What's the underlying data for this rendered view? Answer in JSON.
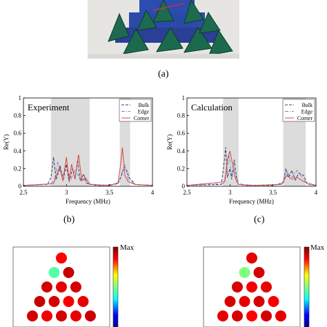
{
  "captions": {
    "a": "(a)",
    "b": "(b)",
    "c": "(c)"
  },
  "charts": {
    "experiment": {
      "title": "Experiment",
      "ylabel": "Re(Y)",
      "xlabel": "Frequency (MHz)",
      "xticks": [
        "2.5",
        "3",
        "3.5",
        "4"
      ],
      "yticks": [
        "0",
        "0.2",
        "0.4",
        "0.6",
        "0.8",
        "1"
      ],
      "legend": [
        "Bulk",
        "Edge",
        "Corner"
      ]
    },
    "calculation": {
      "title": "Calculation",
      "ylabel": "Re(Y)",
      "xlabel": "Frequency (MHz)",
      "xticks": [
        "2.5",
        "3",
        "3.5",
        "4"
      ],
      "yticks": [
        "0",
        "0.2",
        "0.4",
        "0.6",
        "0.8",
        "1"
      ],
      "legend": [
        "Bulk",
        "Edge",
        "Corner"
      ]
    }
  },
  "colorbar": {
    "max_label": "Max"
  },
  "chart_data": [
    {
      "type": "line",
      "title": "Experiment",
      "xlabel": "Frequency (MHz)",
      "ylabel": "Re(Y)",
      "xlim": [
        2.5,
        4
      ],
      "ylim": [
        0,
        1
      ],
      "grid": false,
      "legend_position": "top-right",
      "shaded_bands": [
        [
          2.82,
          3.27
        ],
        [
          3.62,
          3.74
        ]
      ],
      "series": [
        {
          "name": "Bulk",
          "color": "#3a3a5a",
          "dash": "dashed",
          "x": [
            2.5,
            2.78,
            2.82,
            2.85,
            2.88,
            2.93,
            2.96,
            3.0,
            3.03,
            3.07,
            3.1,
            3.13,
            3.16,
            3.2,
            3.23,
            3.27,
            3.35,
            3.5,
            3.6,
            3.64,
            3.67,
            3.7,
            3.73,
            3.8,
            4.0
          ],
          "y": [
            0.01,
            0.02,
            0.1,
            0.33,
            0.08,
            0.22,
            0.06,
            0.25,
            0.05,
            0.2,
            0.08,
            0.3,
            0.06,
            0.14,
            0.04,
            0.02,
            0.01,
            0.01,
            0.03,
            0.12,
            0.22,
            0.18,
            0.1,
            0.02,
            0.01
          ]
        },
        {
          "name": "Edge",
          "color": "#6f7fd8",
          "dash": "dashdot",
          "x": [
            2.5,
            2.8,
            2.86,
            2.9,
            2.95,
            2.98,
            3.02,
            3.05,
            3.1,
            3.14,
            3.2,
            3.27,
            3.4,
            3.6,
            3.64,
            3.68,
            3.72,
            3.8,
            4.0
          ],
          "y": [
            0.01,
            0.02,
            0.06,
            0.28,
            0.1,
            0.2,
            0.15,
            0.08,
            0.18,
            0.12,
            0.08,
            0.03,
            0.01,
            0.03,
            0.14,
            0.24,
            0.08,
            0.02,
            0.01
          ]
        },
        {
          "name": "Corner",
          "color": "#d9453b",
          "dash": "solid",
          "x": [
            2.5,
            2.85,
            2.92,
            2.96,
            3.0,
            3.03,
            3.06,
            3.1,
            3.14,
            3.18,
            3.22,
            3.27,
            3.5,
            3.6,
            3.63,
            3.65,
            3.68,
            3.72,
            3.8,
            4.0
          ],
          "y": [
            0.01,
            0.03,
            0.22,
            0.06,
            0.33,
            0.07,
            0.25,
            0.08,
            0.36,
            0.06,
            0.1,
            0.02,
            0.01,
            0.04,
            0.25,
            0.44,
            0.12,
            0.05,
            0.02,
            0.01
          ]
        }
      ]
    },
    {
      "type": "line",
      "title": "Calculation",
      "xlabel": "Frequency (MHz)",
      "ylabel": "Re(Y)",
      "xlim": [
        2.5,
        4
      ],
      "ylim": [
        0,
        1
      ],
      "grid": false,
      "legend_position": "top-right",
      "shaded_bands": [
        [
          2.92,
          3.1
        ],
        [
          3.62,
          3.88
        ]
      ],
      "series": [
        {
          "name": "Bulk",
          "color": "#3a3a5a",
          "dash": "dashed",
          "x": [
            2.5,
            2.9,
            2.93,
            2.95,
            2.97,
            3.0,
            3.02,
            3.05,
            3.08,
            3.1,
            3.2,
            3.5,
            3.62,
            3.65,
            3.68,
            3.72,
            3.76,
            3.8,
            3.86,
            3.9,
            4.0
          ],
          "y": [
            0.01,
            0.02,
            0.25,
            0.44,
            0.1,
            0.2,
            0.08,
            0.3,
            0.05,
            0.02,
            0.01,
            0.01,
            0.04,
            0.2,
            0.1,
            0.18,
            0.07,
            0.15,
            0.12,
            0.02,
            0.01
          ]
        },
        {
          "name": "Edge",
          "color": "#6f7fd8",
          "dash": "dashdot",
          "x": [
            2.5,
            2.92,
            2.96,
            2.99,
            3.02,
            3.06,
            3.1,
            3.2,
            3.6,
            3.66,
            3.72,
            3.78,
            3.84,
            3.9,
            4.0
          ],
          "y": [
            0.01,
            0.03,
            0.15,
            0.35,
            0.12,
            0.2,
            0.03,
            0.01,
            0.02,
            0.16,
            0.1,
            0.18,
            0.1,
            0.02,
            0.01
          ]
        },
        {
          "name": "Corner",
          "color": "#d9453b",
          "dash": "solid",
          "x": [
            2.5,
            2.94,
            2.97,
            3.0,
            3.03,
            3.06,
            3.1,
            3.3,
            3.6,
            3.66,
            3.72,
            3.78,
            3.86,
            4.0
          ],
          "y": [
            0.01,
            0.05,
            0.3,
            0.4,
            0.25,
            0.1,
            0.02,
            0.01,
            0.02,
            0.12,
            0.08,
            0.1,
            0.05,
            0.01
          ]
        }
      ]
    }
  ],
  "heatmaps": [
    {
      "rows": [
        [
          0.85
        ],
        [
          0.45,
          0.92
        ],
        [
          0.9,
          0.88,
          0.9
        ],
        [
          0.92,
          0.9,
          0.86,
          0.88
        ],
        [
          0.9,
          0.87,
          0.9,
          0.88,
          0.91
        ]
      ]
    },
    {
      "rows": [
        [
          0.88
        ],
        [
          0.5,
          0.9
        ],
        [
          0.9,
          0.86,
          0.88
        ],
        [
          0.9,
          0.88,
          0.9,
          0.86
        ],
        [
          0.88,
          0.9,
          0.85,
          0.9,
          0.88
        ]
      ]
    }
  ]
}
